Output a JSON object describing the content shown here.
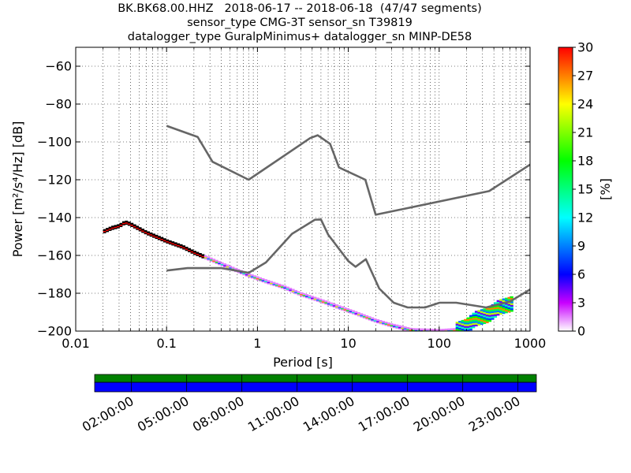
{
  "title_lines": [
    "BK.BK68.00.HHZ   2018-06-17 -- 2018-06-18  (47/47 segments)",
    "sensor_type CMG-3T sensor_sn T39819",
    "datalogger_type GuralpMinimus+ datalogger_sn MINP-DE58"
  ],
  "chart_data": {
    "type": "heatmap",
    "xlabel": "Period [s]",
    "ylabel": "Power [m²/s⁴/Hz] [dB]",
    "x_scale": "log",
    "xlim": [
      0.01,
      1000
    ],
    "ylim": [
      -200,
      -50
    ],
    "x_ticks": [
      {
        "value": 0.01,
        "label": "0.01"
      },
      {
        "value": 0.1,
        "label": "0.1"
      },
      {
        "value": 1,
        "label": "1"
      },
      {
        "value": 10,
        "label": "10"
      },
      {
        "value": 100,
        "label": "100"
      },
      {
        "value": 1000,
        "label": "1000"
      }
    ],
    "y_ticks": [
      {
        "value": -60,
        "label": "−60"
      },
      {
        "value": -80,
        "label": "−80"
      },
      {
        "value": -100,
        "label": "−100"
      },
      {
        "value": -120,
        "label": "−120"
      },
      {
        "value": -140,
        "label": "−140"
      },
      {
        "value": -160,
        "label": "−160"
      },
      {
        "value": -180,
        "label": "−180"
      },
      {
        "value": -200,
        "label": "−200"
      }
    ],
    "grid": "dotted",
    "colorbar": {
      "label": "[%]",
      "range": [
        0,
        30
      ],
      "colormap": "pqlx",
      "ticks": [
        "0",
        "3",
        "6",
        "9",
        "12",
        "15",
        "18",
        "21",
        "24",
        "27",
        "30"
      ]
    },
    "noise_models": [
      {
        "points": [
          [
            0.1,
            -91.5
          ],
          [
            0.22,
            -97.4
          ],
          [
            0.32,
            -110.5
          ],
          [
            0.8,
            -120
          ],
          [
            3.8,
            -98
          ],
          [
            4.6,
            -96.5
          ],
          [
            6.3,
            -101
          ],
          [
            7.9,
            -113.5
          ],
          [
            15.4,
            -120
          ],
          [
            20,
            -138.5
          ],
          [
            354.8,
            -126
          ],
          [
            1000,
            -112
          ]
        ]
      },
      {
        "points": [
          [
            0.1,
            -168
          ],
          [
            0.17,
            -166.7
          ],
          [
            0.4,
            -166.7
          ],
          [
            0.8,
            -169.2
          ],
          [
            1.24,
            -163.7
          ],
          [
            2.4,
            -148.6
          ],
          [
            4.3,
            -141.1
          ],
          [
            5.0,
            -141
          ],
          [
            6.0,
            -149
          ],
          [
            10,
            -163
          ],
          [
            12,
            -166
          ],
          [
            15.6,
            -162
          ],
          [
            21.9,
            -177.5
          ],
          [
            31.6,
            -185
          ],
          [
            45,
            -187.5
          ],
          [
            70,
            -187.5
          ],
          [
            101,
            -185
          ],
          [
            154,
            -185
          ],
          [
            328,
            -187.5
          ],
          [
            600,
            -184.4
          ],
          [
            1000,
            -178
          ]
        ]
      }
    ],
    "psd_mode": {
      "points": [
        [
          0.02,
          -147.5
        ],
        [
          0.025,
          -145.5
        ],
        [
          0.03,
          -144.5
        ],
        [
          0.035,
          -142.5
        ],
        [
          0.04,
          -143.5
        ],
        [
          0.05,
          -146
        ],
        [
          0.06,
          -148
        ],
        [
          0.08,
          -150.5
        ],
        [
          0.1,
          -152.5
        ],
        [
          0.15,
          -155.5
        ],
        [
          0.2,
          -158.5
        ],
        [
          0.3,
          -162
        ],
        [
          0.5,
          -166.5
        ],
        [
          0.8,
          -170.5
        ],
        [
          1.2,
          -173.5
        ],
        [
          2,
          -177
        ],
        [
          3,
          -180.5
        ],
        [
          5,
          -184
        ],
        [
          8,
          -187.5
        ],
        [
          12,
          -190.5
        ],
        [
          20,
          -194.5
        ],
        [
          30,
          -197
        ],
        [
          50,
          -199.5
        ],
        [
          100,
          -200
        ],
        [
          150,
          -199.5
        ],
        [
          200,
          -197.5
        ],
        [
          250,
          -193.5
        ],
        [
          350,
          -191.5
        ],
        [
          450,
          -187.5
        ],
        [
          650,
          -185.5
        ]
      ]
    },
    "time_axis": {
      "tick_labels": [
        "02:00:00",
        "05:00:00",
        "08:00:00",
        "11:00:00",
        "14:00:00",
        "17:00:00",
        "20:00:00",
        "23:00:00"
      ],
      "tick_hours": [
        2,
        5,
        8,
        11,
        14,
        17,
        20,
        23
      ],
      "range_hours": [
        0,
        24
      ],
      "bars": [
        {
          "name": "data-coverage",
          "color": "#008000"
        },
        {
          "name": "psd-coverage",
          "color": "#0000ff"
        }
      ]
    }
  }
}
